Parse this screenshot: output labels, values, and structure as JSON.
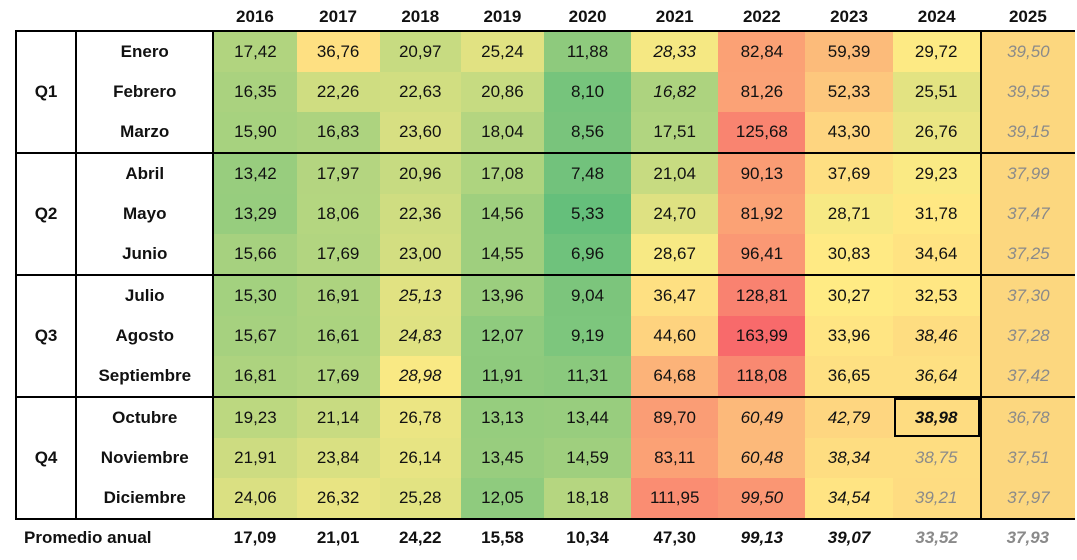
{
  "years": [
    "2016",
    "2017",
    "2018",
    "2019",
    "2020",
    "2021",
    "2022",
    "2023",
    "2024",
    "2025"
  ],
  "quarters": [
    {
      "label": "Q1",
      "months": [
        {
          "name": "Enero",
          "values": [
            "17,42",
            "36,76",
            "20,97",
            "25,24",
            "11,88",
            "28,33",
            "82,84",
            "59,39",
            "29,72",
            "39,50"
          ]
        },
        {
          "name": "Febrero",
          "values": [
            "16,35",
            "22,26",
            "22,63",
            "20,86",
            "8,10",
            "16,82",
            "81,26",
            "52,33",
            "25,51",
            "39,55"
          ]
        },
        {
          "name": "Marzo",
          "values": [
            "15,90",
            "16,83",
            "23,60",
            "18,04",
            "8,56",
            "17,51",
            "125,68",
            "43,30",
            "26,76",
            "39,15"
          ]
        }
      ]
    },
    {
      "label": "Q2",
      "months": [
        {
          "name": "Abril",
          "values": [
            "13,42",
            "17,97",
            "20,96",
            "17,08",
            "7,48",
            "21,04",
            "90,13",
            "37,69",
            "29,23",
            "37,99"
          ]
        },
        {
          "name": "Mayo",
          "values": [
            "13,29",
            "18,06",
            "22,36",
            "14,56",
            "5,33",
            "24,70",
            "81,92",
            "28,71",
            "31,78",
            "37,47"
          ]
        },
        {
          "name": "Junio",
          "values": [
            "15,66",
            "17,69",
            "23,00",
            "14,55",
            "6,96",
            "28,67",
            "96,41",
            "30,83",
            "34,64",
            "37,25"
          ]
        }
      ]
    },
    {
      "label": "Q3",
      "months": [
        {
          "name": "Julio",
          "values": [
            "15,30",
            "16,91",
            "25,13",
            "13,96",
            "9,04",
            "36,47",
            "128,81",
            "30,27",
            "32,53",
            "37,30"
          ]
        },
        {
          "name": "Agosto",
          "values": [
            "15,67",
            "16,61",
            "24,83",
            "12,07",
            "9,19",
            "44,60",
            "163,99",
            "33,96",
            "38,46",
            "37,28"
          ]
        },
        {
          "name": "Septiembre",
          "values": [
            "16,81",
            "17,69",
            "28,98",
            "11,91",
            "11,31",
            "64,68",
            "118,08",
            "36,65",
            "36,64",
            "37,42"
          ]
        }
      ]
    },
    {
      "label": "Q4",
      "months": [
        {
          "name": "Octubre",
          "values": [
            "19,23",
            "21,14",
            "26,78",
            "13,13",
            "13,44",
            "89,70",
            "60,49",
            "42,79",
            "38,98",
            "36,78"
          ]
        },
        {
          "name": "Noviembre",
          "values": [
            "21,91",
            "23,84",
            "26,14",
            "13,45",
            "14,59",
            "83,11",
            "60,48",
            "38,34",
            "38,75",
            "37,51"
          ]
        },
        {
          "name": "Diciembre",
          "values": [
            "24,06",
            "26,32",
            "25,28",
            "12,05",
            "18,18",
            "111,95",
            "99,50",
            "34,54",
            "39,21",
            "37,97"
          ]
        }
      ]
    }
  ],
  "average": {
    "label": "Promedio anual",
    "values": [
      "17,09",
      "21,01",
      "24,22",
      "15,58",
      "10,34",
      "47,30",
      "99,13",
      "39,07",
      "33,52",
      "37,93"
    ]
  },
  "styles": {
    "italic_cells": [
      [
        0,
        5
      ],
      [
        1,
        5
      ],
      [
        6,
        2
      ],
      [
        7,
        2
      ],
      [
        8,
        2
      ],
      [
        7,
        8
      ],
      [
        8,
        8
      ],
      [
        9,
        6
      ],
      [
        10,
        6
      ],
      [
        11,
        6
      ],
      [
        9,
        7
      ],
      [
        10,
        7
      ],
      [
        11,
        7
      ]
    ],
    "bold_italic_boxed_cells": [
      [
        9,
        8
      ]
    ],
    "grey_cells": [
      [
        10,
        8
      ],
      [
        11,
        8
      ]
    ],
    "avg_italic": [
      6,
      7
    ],
    "avg_grey": [
      8,
      9
    ],
    "colors": {
      "scale_min": "#63be7b",
      "scale_mid": "#ffeb84",
      "scale_high": "#fbaa77",
      "scale_max": "#f8696b",
      "forecast_column": "#fcd77f",
      "grey_text": "#8a8a8a"
    }
  }
}
